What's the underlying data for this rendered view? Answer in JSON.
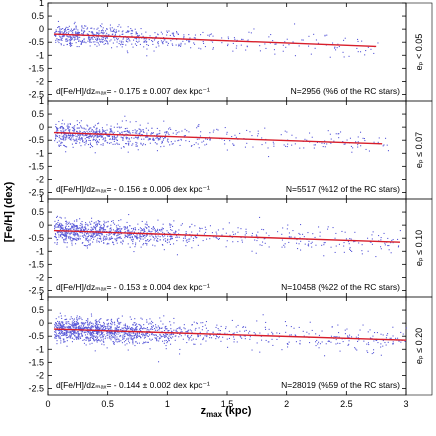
{
  "chart_data": {
    "type": "scatter",
    "xlabel": "z",
    "xlabel_sub": "max",
    "xlabel_unit": " (kpc)",
    "ylabel": "[Fe/H] (dex)",
    "xlim": [
      0,
      3
    ],
    "ylim": [
      -2.75,
      1.0
    ],
    "x_ticks": [
      "0",
      "0.5",
      "1",
      "1.5",
      "2",
      "2.5",
      "3"
    ],
    "y_ticks": [
      "1",
      "0.5",
      "0",
      "-0.5",
      "-1",
      "-1.5",
      "-2",
      "-2.5"
    ],
    "x_tick_values": [
      0,
      0.5,
      1,
      1.5,
      2,
      2.5,
      3
    ],
    "y_tick_values": [
      1,
      0.5,
      0,
      -0.5,
      -1,
      -1.5,
      -2,
      -2.5
    ],
    "point_color": "#5a5ad8",
    "fit_color": "#d81e2a",
    "grid": false,
    "panels": [
      {
        "ecc_label": "eₚ < 0.05",
        "gradient_text": "d[Fe/H]/dzₘₐₓ= - 0.175 ± 0.007 dex kpc⁻¹",
        "count_text": "N=2956 (%6 of the RC stars)",
        "slope": -0.175,
        "intercept": -0.18,
        "fit_x_range": [
          0.05,
          2.75
        ],
        "n_points": 2956,
        "x_extent": 2.8,
        "scatter_sigma": 0.2
      },
      {
        "ecc_label": "eₚ ≤ 0.07",
        "gradient_text": "d[Fe/H]/dzₘₐₓ= - 0.156 ± 0.006 dex kpc⁻¹",
        "count_text": "N=5517 (%12 of the RC stars)",
        "slope": -0.156,
        "intercept": -0.2,
        "fit_x_range": [
          0.05,
          2.8
        ],
        "n_points": 5517,
        "x_extent": 2.85,
        "scatter_sigma": 0.21
      },
      {
        "ecc_label": "eₚ ≤ 0.10",
        "gradient_text": "d[Fe/H]/dzₘₐₓ= - 0.153 ± 0.004 dex kpc⁻¹",
        "count_text": "N=10458 (%22 of the RC stars)",
        "slope": -0.153,
        "intercept": -0.2,
        "fit_x_range": [
          0.05,
          2.95
        ],
        "n_points": 10458,
        "x_extent": 2.95,
        "scatter_sigma": 0.22
      },
      {
        "ecc_label": "eₚ ≤ 0.20",
        "gradient_text": "d[Fe/H]/dzₘₐₓ= - 0.144 ± 0.002 dex kpc⁻¹",
        "count_text": "N=28019 (%59 of the RC stars)",
        "slope": -0.144,
        "intercept": -0.22,
        "fit_x_range": [
          0.05,
          3.0
        ],
        "n_points": 28019,
        "x_extent": 3.0,
        "scatter_sigma": 0.23
      }
    ]
  }
}
